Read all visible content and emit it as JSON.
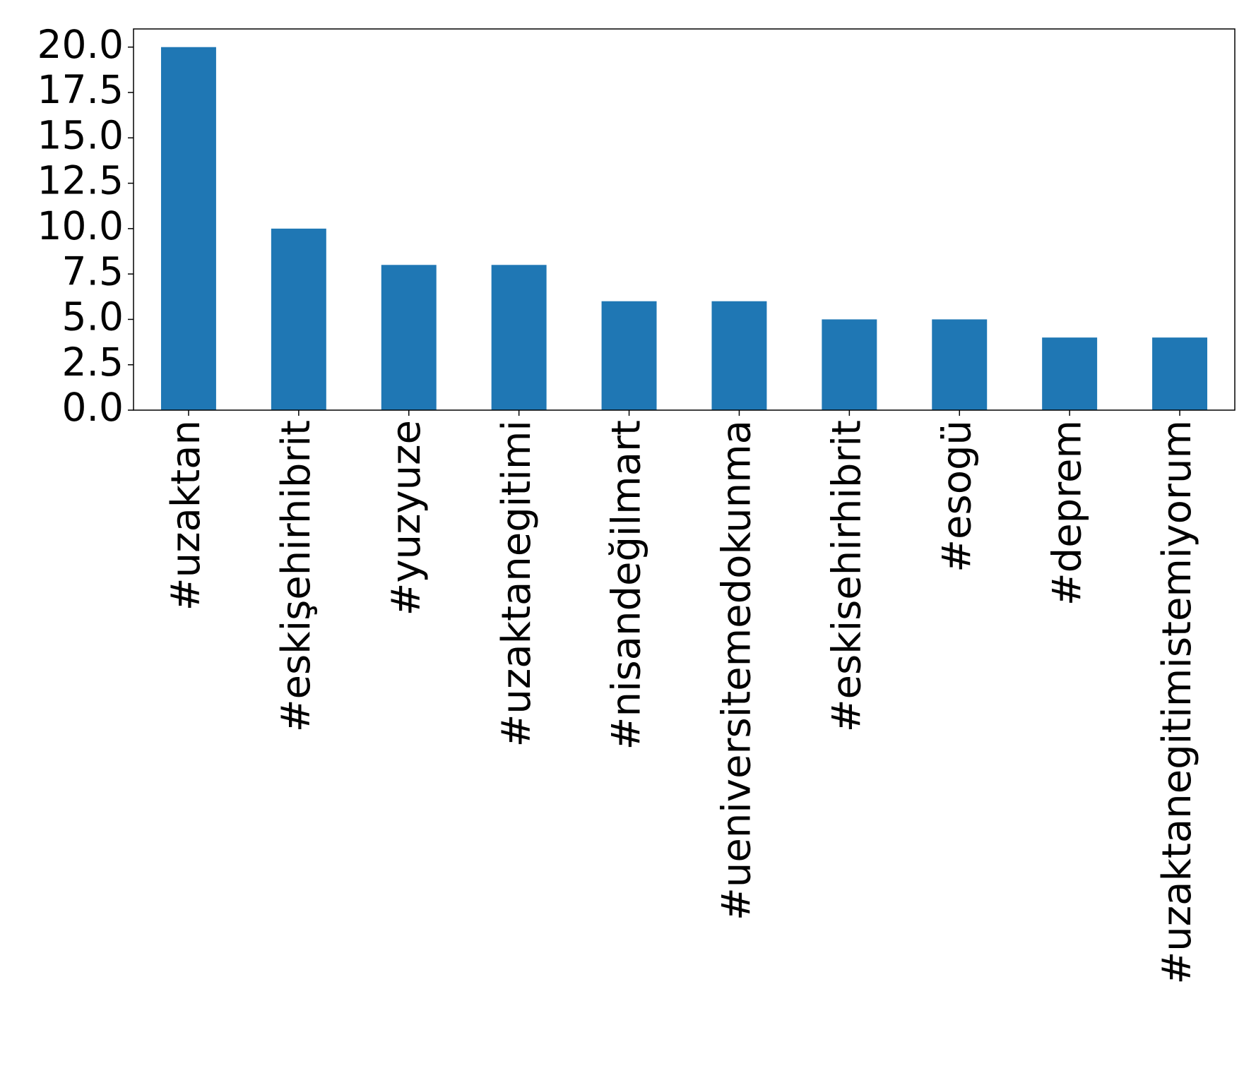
{
  "chart_data": {
    "type": "bar",
    "categories": [
      "#uzaktan",
      "#eskişehirhibrit",
      "#yuzyuze",
      "#uzaktanegitimi",
      "#nisandeğilmart",
      "#ueniversitemedokunma",
      "#eskisehirhibrit",
      "#esogü",
      "#deprem",
      "#uzaktanegitimistemiyorum"
    ],
    "values": [
      20,
      10,
      8,
      8,
      6,
      6,
      5,
      5,
      4,
      4
    ],
    "color": "#1f77b4",
    "ylim": [
      0,
      21
    ],
    "yticks": [
      {
        "value": 0,
        "label": "0.0"
      },
      2.5,
      {
        "value": 5,
        "label": "5.0"
      },
      7.5,
      {
        "value": 10,
        "label": "10.0"
      },
      12.5,
      {
        "value": 15,
        "label": "15.0"
      },
      17.5,
      {
        "value": 20,
        "label": "20.0"
      }
    ],
    "grid": false
  }
}
